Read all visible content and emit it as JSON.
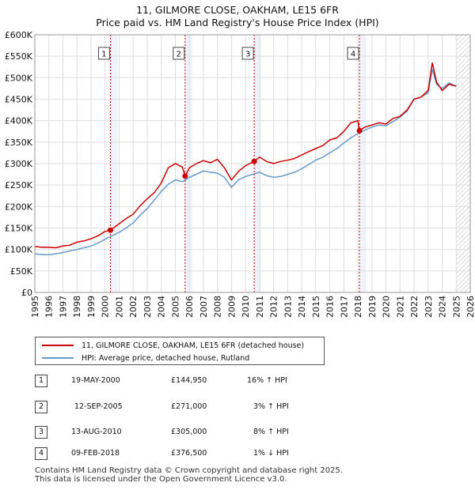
{
  "chart_data": {
    "type": "line",
    "title": "11, GILMORE CLOSE, OAKHAM, LE15 6FR",
    "subtitle": "Price paid vs. HM Land Registry's House Price Index (HPI)",
    "xlabel": "",
    "ylabel": "",
    "xlim": [
      1995,
      2026
    ],
    "ylim": [
      0,
      600000
    ],
    "x_ticks": [
      "1995",
      "1996",
      "1997",
      "1998",
      "1999",
      "2000",
      "2001",
      "2002",
      "2003",
      "2004",
      "2005",
      "2006",
      "2007",
      "2008",
      "2009",
      "2010",
      "2011",
      "2012",
      "2013",
      "2014",
      "2015",
      "2016",
      "2017",
      "2018",
      "2019",
      "2020",
      "2021",
      "2022",
      "2023",
      "2024",
      "2025",
      "2026"
    ],
    "y_ticks": [
      "£0",
      "£50K",
      "£100K",
      "£150K",
      "£200K",
      "£250K",
      "£300K",
      "£350K",
      "£400K",
      "£450K",
      "£500K",
      "£550K",
      "£600K"
    ],
    "grid": true,
    "shaded_x_ranges": [
      [
        2000.38,
        2000.9
      ],
      [
        2005.7,
        2006.2
      ],
      [
        2010.6,
        2011.1
      ],
      [
        2018.1,
        2018.6
      ],
      [
        2025.0,
        2026.0
      ]
    ],
    "series": [
      {
        "name": "11, GILMORE CLOSE, OAKHAM, LE15 6FR (detached house)",
        "color": "#cc0000",
        "x": [
          1995,
          1995.5,
          1996,
          1996.5,
          1997,
          1997.5,
          1998,
          1998.5,
          1999,
          1999.5,
          2000,
          2000.38,
          2001,
          2001.5,
          2002,
          2002.5,
          2003,
          2003.5,
          2004,
          2004.5,
          2005,
          2005.5,
          2005.7,
          2006,
          2006.5,
          2007,
          2007.5,
          2008,
          2008.5,
          2009,
          2009.5,
          2010,
          2010.6,
          2011,
          2011.5,
          2012,
          2012.5,
          2013,
          2013.5,
          2014,
          2014.5,
          2015,
          2015.5,
          2016,
          2016.5,
          2017,
          2017.5,
          2018,
          2018.1,
          2018.5,
          2019,
          2019.5,
          2020,
          2020.5,
          2021,
          2021.5,
          2022,
          2022.5,
          2023,
          2023.3,
          2023.6,
          2024,
          2024.5,
          2025
        ],
        "y": [
          107000,
          105000,
          105000,
          104000,
          108000,
          110000,
          117000,
          120000,
          125000,
          132000,
          142000,
          145000,
          160000,
          172000,
          182000,
          202000,
          218000,
          232000,
          255000,
          290000,
          300000,
          292000,
          271000,
          290000,
          300000,
          307000,
          302000,
          310000,
          290000,
          262000,
          282000,
          295000,
          305000,
          315000,
          305000,
          300000,
          305000,
          308000,
          312000,
          320000,
          328000,
          335000,
          342000,
          355000,
          360000,
          375000,
          395000,
          400000,
          376500,
          385000,
          390000,
          395000,
          392000,
          405000,
          410000,
          425000,
          450000,
          455000,
          470000,
          535000,
          490000,
          470000,
          485000,
          480000
        ]
      },
      {
        "name": "HPI: Average price, detached house, Rutland",
        "color": "#6699cc",
        "x": [
          1995,
          1995.5,
          1996,
          1996.5,
          1997,
          1997.5,
          1998,
          1998.5,
          1999,
          1999.5,
          2000,
          2000.5,
          2001,
          2001.5,
          2002,
          2002.5,
          2003,
          2003.5,
          2004,
          2004.5,
          2005,
          2005.5,
          2006,
          2006.5,
          2007,
          2007.5,
          2008,
          2008.5,
          2009,
          2009.5,
          2010,
          2010.5,
          2011,
          2011.5,
          2012,
          2012.5,
          2013,
          2013.5,
          2014,
          2014.5,
          2015,
          2015.5,
          2016,
          2016.5,
          2017,
          2017.5,
          2018,
          2018.5,
          2019,
          2019.5,
          2020,
          2020.5,
          2021,
          2021.5,
          2022,
          2022.5,
          2023,
          2023.3,
          2023.6,
          2024,
          2024.5,
          2025
        ],
        "y": [
          90000,
          88000,
          88000,
          90000,
          93000,
          97000,
          100000,
          104000,
          108000,
          115000,
          124000,
          132000,
          140000,
          150000,
          162000,
          180000,
          195000,
          215000,
          235000,
          252000,
          262000,
          258000,
          268000,
          275000,
          283000,
          280000,
          278000,
          268000,
          245000,
          262000,
          270000,
          275000,
          280000,
          272000,
          268000,
          270000,
          275000,
          280000,
          288000,
          298000,
          308000,
          315000,
          325000,
          335000,
          348000,
          360000,
          370000,
          378000,
          385000,
          390000,
          388000,
          398000,
          408000,
          422000,
          450000,
          455000,
          465000,
          520000,
          485000,
          475000,
          488000,
          480000
        ]
      }
    ],
    "sales": [
      {
        "n": "1",
        "x": 2000.38,
        "y": 144950
      },
      {
        "n": "2",
        "x": 2005.7,
        "y": 271000
      },
      {
        "n": "3",
        "x": 2010.62,
        "y": 305000
      },
      {
        "n": "4",
        "x": 2018.11,
        "y": 376500
      }
    ]
  },
  "legend": {
    "property": "11, GILMORE CLOSE, OAKHAM, LE15 6FR (detached house)",
    "hpi": "HPI: Average price, detached house, Rutland"
  },
  "transactions": [
    {
      "n": "1",
      "date": "19-MAY-2000",
      "price": "£144,950",
      "hpi": "16% ↑ HPI"
    },
    {
      "n": "2",
      "date": "12-SEP-2005",
      "price": "£271,000",
      "hpi": "3% ↑ HPI"
    },
    {
      "n": "3",
      "date": "13-AUG-2010",
      "price": "£305,000",
      "hpi": "8% ↑ HPI"
    },
    {
      "n": "4",
      "date": "09-FEB-2018",
      "price": "£376,500",
      "hpi": "1% ↓ HPI"
    }
  ],
  "footer": {
    "line1": "Contains HM Land Registry data © Crown copyright and database right 2025.",
    "line2": "This data is licensed under the Open Government Licence v3.0."
  },
  "colors": {
    "property": "#cc0000",
    "hpi": "#6699cc",
    "grid": "#dddddd",
    "shade": "#e8eef8"
  }
}
